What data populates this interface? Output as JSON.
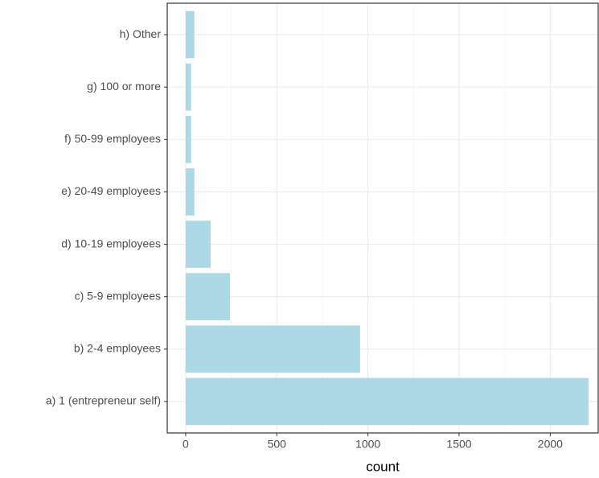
{
  "chart_data": {
    "type": "bar",
    "orientation": "horizontal",
    "x_label": "count",
    "categories": [
      "a) 1 (entrepreneur self)",
      "b) 2-4 employees",
      "c) 5-9 employees",
      "d) 10-19 employees",
      "e) 20-49 employees",
      "f) 50-99 employees",
      "g) 100 or more",
      "h) Other"
    ],
    "values": [
      2210,
      957,
      243,
      137,
      48,
      30,
      30,
      48
    ],
    "color": "#add8e6",
    "xlim": [
      -101,
      2263
    ],
    "xticks": [
      0,
      500,
      1000,
      1500,
      2000
    ],
    "grid": true
  }
}
